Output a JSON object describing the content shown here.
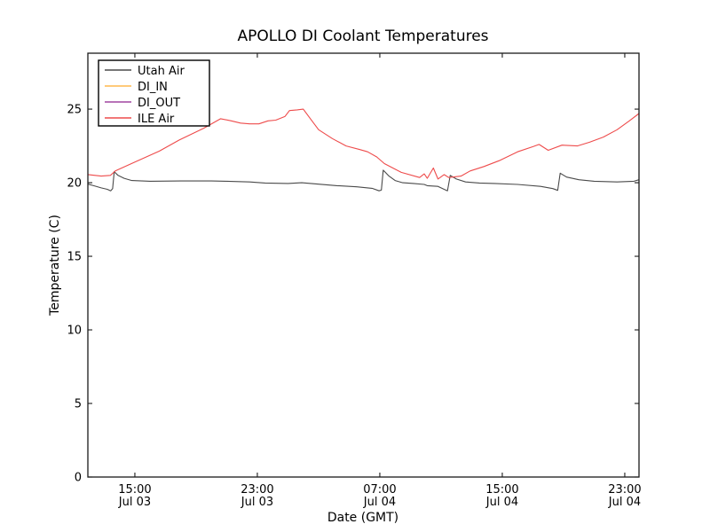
{
  "title": "APOLLO DI Coolant Temperatures",
  "chart_data": {
    "type": "line",
    "title": "APOLLO DI Coolant Temperatures",
    "xlabel": "Date (GMT)",
    "ylabel": "Temperature (C)",
    "x_unit": "hours since Jul 03 00:00 GMT",
    "xlim": [
      11.93,
      47.93
    ],
    "ylim": [
      0,
      28.8
    ],
    "grid": false,
    "legend_position": "upper left",
    "yticks": [
      0,
      5,
      10,
      15,
      20,
      25
    ],
    "xticks": [
      {
        "t": 15,
        "time": "15:00",
        "date": "Jul 03"
      },
      {
        "t": 23,
        "time": "23:00",
        "date": "Jul 03"
      },
      {
        "t": 31,
        "time": "07:00",
        "date": "Jul 04"
      },
      {
        "t": 39,
        "time": "15:00",
        "date": "Jul 04"
      },
      {
        "t": 47,
        "time": "23:00",
        "date": "Jul 04"
      }
    ],
    "series": [
      {
        "name": "Utah Air",
        "color": "#4a4a4a",
        "points": [
          [
            11.95,
            19.9
          ],
          [
            12.3,
            19.8
          ],
          [
            12.8,
            19.65
          ],
          [
            13.2,
            19.55
          ],
          [
            13.42,
            19.45
          ],
          [
            13.55,
            19.6
          ],
          [
            13.65,
            20.75
          ],
          [
            13.9,
            20.5
          ],
          [
            14.3,
            20.3
          ],
          [
            14.8,
            20.15
          ],
          [
            16,
            20.1
          ],
          [
            18,
            20.12
          ],
          [
            20,
            20.12
          ],
          [
            21,
            20.1
          ],
          [
            22.5,
            20.05
          ],
          [
            23.5,
            19.98
          ],
          [
            25,
            19.95
          ],
          [
            25.9,
            20.0
          ],
          [
            27,
            19.9
          ],
          [
            28.2,
            19.8
          ],
          [
            29.5,
            19.72
          ],
          [
            30.5,
            19.62
          ],
          [
            30.95,
            19.45
          ],
          [
            31.1,
            19.5
          ],
          [
            31.22,
            20.85
          ],
          [
            31.6,
            20.45
          ],
          [
            32.0,
            20.15
          ],
          [
            32.5,
            20.0
          ],
          [
            33.2,
            19.95
          ],
          [
            33.9,
            19.88
          ],
          [
            34.1,
            19.8
          ],
          [
            34.8,
            19.75
          ],
          [
            35.2,
            19.55
          ],
          [
            35.42,
            19.45
          ],
          [
            35.6,
            20.5
          ],
          [
            36.0,
            20.25
          ],
          [
            36.6,
            20.05
          ],
          [
            37.5,
            19.98
          ],
          [
            38.5,
            19.95
          ],
          [
            40,
            19.88
          ],
          [
            41.5,
            19.75
          ],
          [
            42.3,
            19.6
          ],
          [
            42.62,
            19.48
          ],
          [
            42.78,
            20.65
          ],
          [
            43.2,
            20.38
          ],
          [
            44,
            20.2
          ],
          [
            45,
            20.1
          ],
          [
            46.5,
            20.05
          ],
          [
            47.6,
            20.1
          ],
          [
            47.93,
            20.2
          ]
        ]
      },
      {
        "name": "DI_IN",
        "color": "#ffb94e",
        "points": []
      },
      {
        "name": "DI_OUT",
        "color": "#a045a0",
        "points": []
      },
      {
        "name": "ILE Air",
        "color": "#ee4b4b",
        "points": [
          [
            11.95,
            20.55
          ],
          [
            12.8,
            20.45
          ],
          [
            13.4,
            20.5
          ],
          [
            13.72,
            20.8
          ],
          [
            15.0,
            21.4
          ],
          [
            16.6,
            22.15
          ],
          [
            17.9,
            22.9
          ],
          [
            19.5,
            23.7
          ],
          [
            20.6,
            24.35
          ],
          [
            21.3,
            24.2
          ],
          [
            21.9,
            24.05
          ],
          [
            22.5,
            24.0
          ],
          [
            23.1,
            24.0
          ],
          [
            23.7,
            24.2
          ],
          [
            24.2,
            24.25
          ],
          [
            24.8,
            24.5
          ],
          [
            25.1,
            24.9
          ],
          [
            25.6,
            24.95
          ],
          [
            26.0,
            25.0
          ],
          [
            26.5,
            24.3
          ],
          [
            27.0,
            23.6
          ],
          [
            27.9,
            23.0
          ],
          [
            28.8,
            22.5
          ],
          [
            29.7,
            22.25
          ],
          [
            30.2,
            22.1
          ],
          [
            30.8,
            21.75
          ],
          [
            31.3,
            21.3
          ],
          [
            32.4,
            20.7
          ],
          [
            33.6,
            20.35
          ],
          [
            33.9,
            20.6
          ],
          [
            34.1,
            20.3
          ],
          [
            34.5,
            21.0
          ],
          [
            34.8,
            20.25
          ],
          [
            35.2,
            20.55
          ],
          [
            35.5,
            20.35
          ],
          [
            36.3,
            20.45
          ],
          [
            36.9,
            20.8
          ],
          [
            37.8,
            21.1
          ],
          [
            38.8,
            21.5
          ],
          [
            40.0,
            22.1
          ],
          [
            41.0,
            22.45
          ],
          [
            41.4,
            22.6
          ],
          [
            42.0,
            22.2
          ],
          [
            42.9,
            22.55
          ],
          [
            43.9,
            22.5
          ],
          [
            44.7,
            22.75
          ],
          [
            45.6,
            23.1
          ],
          [
            46.5,
            23.6
          ],
          [
            47.3,
            24.2
          ],
          [
            47.93,
            24.7
          ]
        ]
      }
    ]
  },
  "legend": {
    "labels": [
      "Utah Air",
      "DI_IN",
      "DI_OUT",
      "ILE Air"
    ]
  },
  "colors": {
    "axis": "#1a1a1a",
    "background": "#ffffff"
  }
}
